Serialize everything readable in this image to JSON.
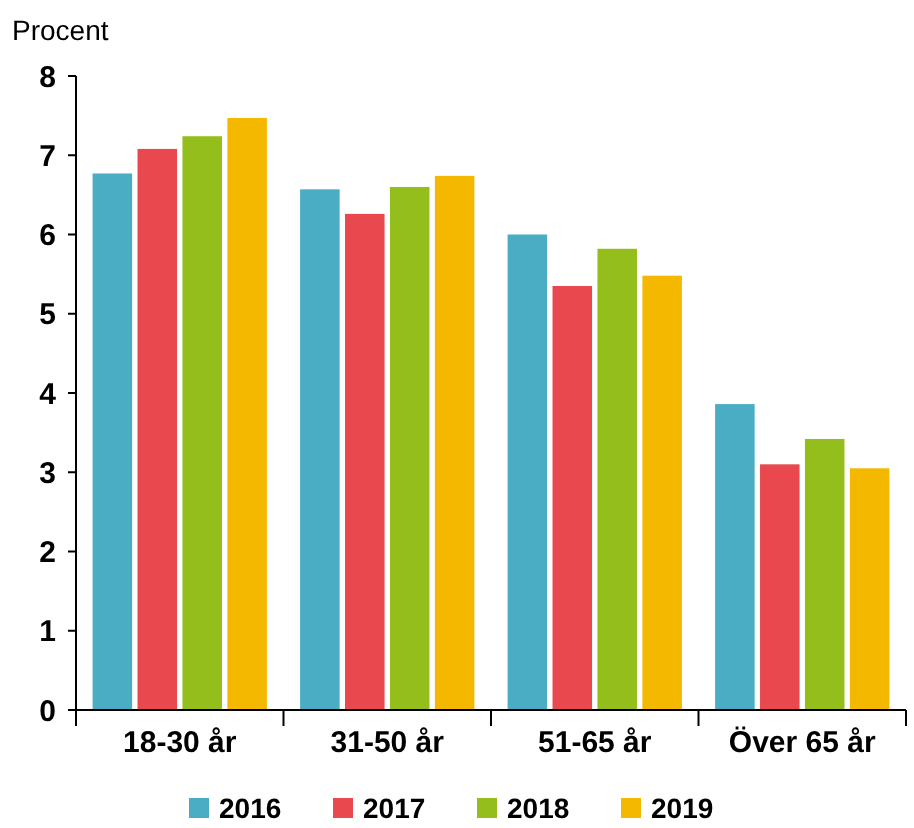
{
  "chart_data": {
    "type": "bar",
    "ylabel": "Procent",
    "categories": [
      "18-30 år",
      "31-50 år",
      "51-65 år",
      "Över 65 år"
    ],
    "series": [
      {
        "name": "2016",
        "color": "#4aadc4",
        "values": [
          6.77,
          6.57,
          6.0,
          3.86
        ]
      },
      {
        "name": "2017",
        "color": "#e8484e",
        "values": [
          7.08,
          6.26,
          5.35,
          3.1
        ]
      },
      {
        "name": "2018",
        "color": "#94be1c",
        "values": [
          7.24,
          6.6,
          5.82,
          3.42
        ]
      },
      {
        "name": "2019",
        "color": "#f4b800",
        "values": [
          7.47,
          6.74,
          5.48,
          3.05
        ]
      }
    ],
    "ylim": [
      0,
      8
    ],
    "yticks": [
      0,
      1,
      2,
      3,
      4,
      5,
      6,
      7,
      8
    ],
    "grid": false,
    "legend": "bottom"
  }
}
